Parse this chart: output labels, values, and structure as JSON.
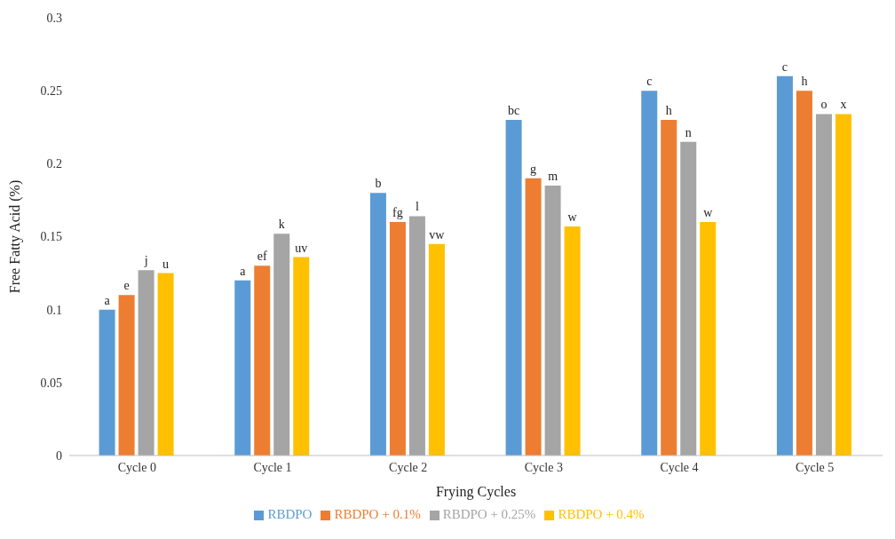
{
  "chart_data": {
    "type": "bar",
    "xlabel": "Frying Cycles",
    "ylabel": "Free Fatty Acid (%)",
    "categories": [
      "Cycle 0",
      "Cycle 1",
      "Cycle 2",
      "Cycle 3",
      "Cycle 4",
      "Cycle 5"
    ],
    "series": [
      {
        "name": "RBDPO",
        "color": "#5b9bd5",
        "values": [
          0.1,
          0.12,
          0.18,
          0.23,
          0.25,
          0.26
        ],
        "value_labels": [
          "a",
          "a",
          "b",
          "bc",
          "c",
          "c"
        ]
      },
      {
        "name": "RBDPO + 0.1%",
        "color": "#ed7d31",
        "values": [
          0.11,
          0.13,
          0.16,
          0.19,
          0.23,
          0.25
        ],
        "value_labels": [
          "e",
          "ef",
          "fg",
          "g",
          "h",
          "h"
        ]
      },
      {
        "name": "RBDPO + 0.25%",
        "color": "#a5a5a5",
        "values": [
          0.127,
          0.152,
          0.164,
          0.185,
          0.215,
          0.234
        ],
        "value_labels": [
          "j",
          "k",
          "l",
          "m",
          "n",
          "o"
        ]
      },
      {
        "name": "RBDPO + 0.4%",
        "color": "#ffc000",
        "values": [
          0.125,
          0.136,
          0.145,
          0.157,
          0.16,
          0.234
        ],
        "value_labels": [
          "u",
          "uv",
          "vw",
          "w",
          "w",
          "x"
        ]
      }
    ],
    "ylim": [
      0,
      0.3
    ],
    "yticks": [
      0,
      0.05,
      0.1,
      0.15,
      0.2,
      0.25,
      0.3
    ],
    "grid": false,
    "legend": "bottom"
  }
}
